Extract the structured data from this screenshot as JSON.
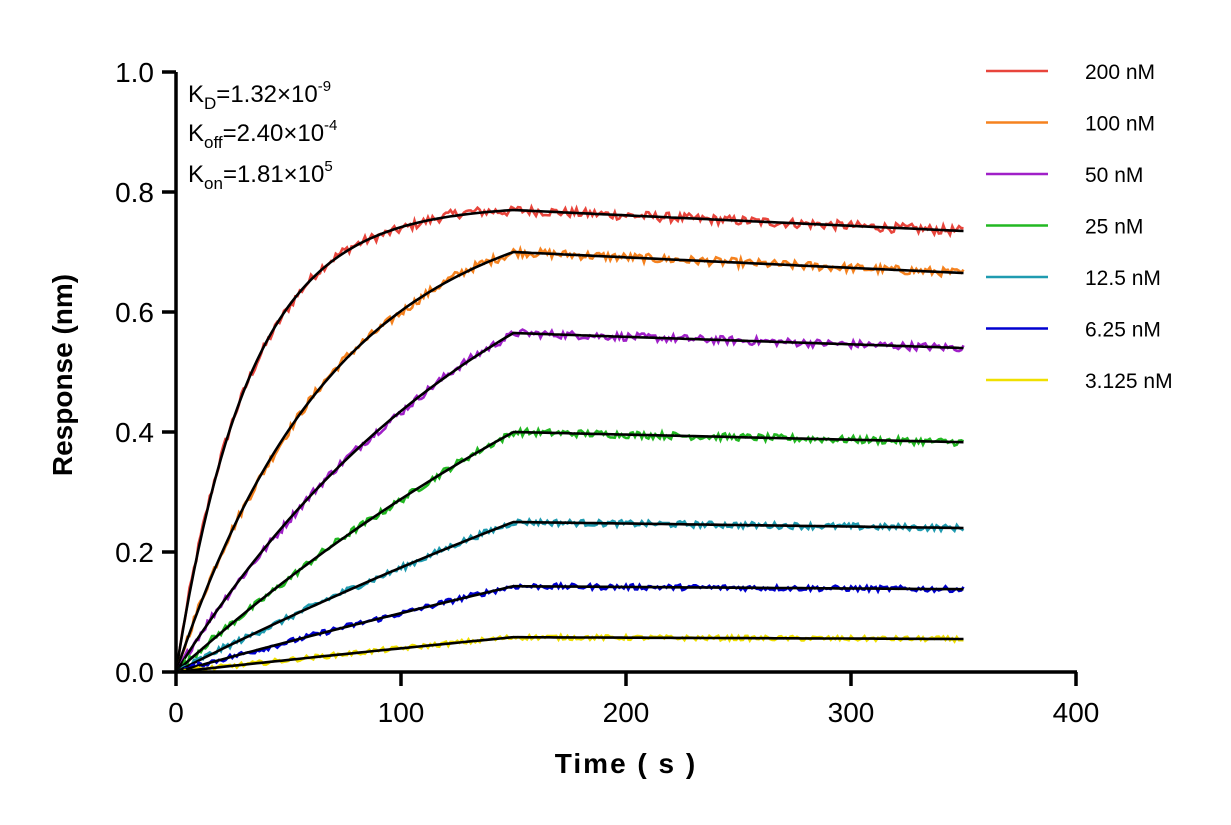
{
  "chart_data": {
    "type": "line",
    "title": "",
    "xlabel": "Time ( s )",
    "ylabel": "Response (nm)",
    "xlim": [
      0,
      400
    ],
    "ylim": [
      0,
      1.0
    ],
    "x_ticks": [
      0,
      100,
      200,
      300,
      400
    ],
    "x_tick_labels": [
      "0",
      "100",
      "200",
      "300",
      "400"
    ],
    "y_ticks": [
      0,
      0.2,
      0.4,
      0.6,
      0.8,
      1.0
    ],
    "y_tick_labels": [
      "0.0",
      "0.2",
      "0.4",
      "0.6",
      "0.8",
      "1.0"
    ],
    "grid": false,
    "legend_position": "right",
    "association_end": 150,
    "dissociation_end": 350,
    "fit_color": "#000000",
    "annotations": {
      "kd": {
        "base": "K",
        "sub": "D",
        "value": "=1.32×10",
        "exp": "-9"
      },
      "koff": {
        "base": "K",
        "sub": "off",
        "value": "=2.40×10",
        "exp": "-4"
      },
      "kon": {
        "base": "K",
        "sub": "on",
        "value": "=1.81×10",
        "exp": "5"
      }
    },
    "series": [
      {
        "name": "200 nM",
        "color": "#e8453c",
        "peak": 0.77,
        "end": 0.735
      },
      {
        "name": "100 nM",
        "color": "#f5821f",
        "peak": 0.7,
        "end": 0.665
      },
      {
        "name": "50 nM",
        "color": "#a020c8",
        "peak": 0.565,
        "end": 0.54
      },
      {
        "name": "25 nM",
        "color": "#22b822",
        "peak": 0.4,
        "end": 0.383
      },
      {
        "name": "12.5 nM",
        "color": "#1f9bb0",
        "peak": 0.25,
        "end": 0.24
      },
      {
        "name": "6.25 nM",
        "color": "#0000d0",
        "peak": 0.143,
        "end": 0.138
      },
      {
        "name": "3.125 nM",
        "color": "#f0e000",
        "peak": 0.058,
        "end": 0.055
      }
    ]
  }
}
